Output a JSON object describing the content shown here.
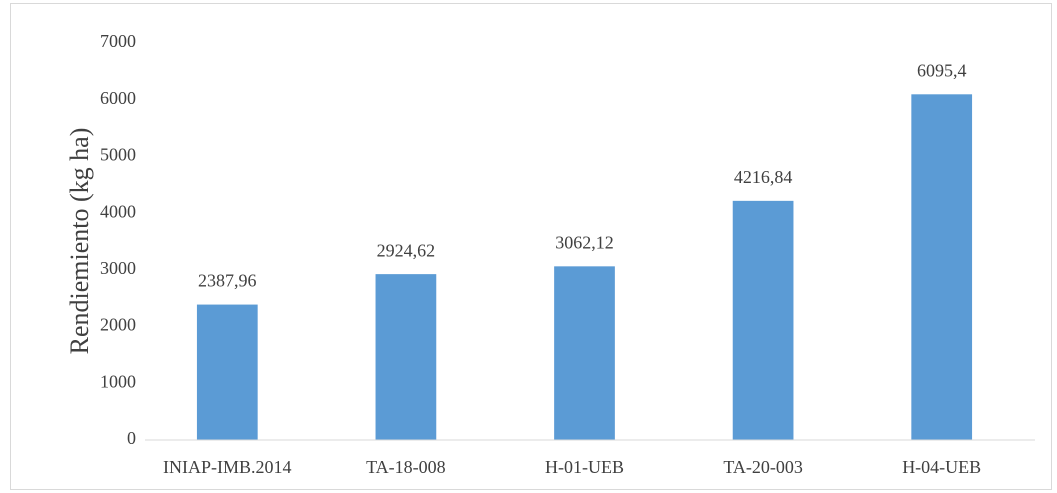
{
  "chart_data": {
    "type": "bar",
    "y_label": "Rendiemiento (kg ha)",
    "categories": [
      "INIAP-IMB.2014",
      "TA-18-008",
      "H-01-UEB",
      "TA-20-003",
      "H-04-UEB"
    ],
    "values": [
      2387.96,
      2924.62,
      3062.12,
      4216.84,
      6095.4
    ],
    "value_labels": [
      "2387,96",
      "2924,62",
      "3062,12",
      "4216,84",
      "6095,4"
    ],
    "color": "#5b9bd5",
    "ylim": [
      0,
      7000
    ],
    "yticks": [
      0,
      1000,
      2000,
      3000,
      4000,
      5000,
      6000,
      7000
    ],
    "grid": false
  }
}
